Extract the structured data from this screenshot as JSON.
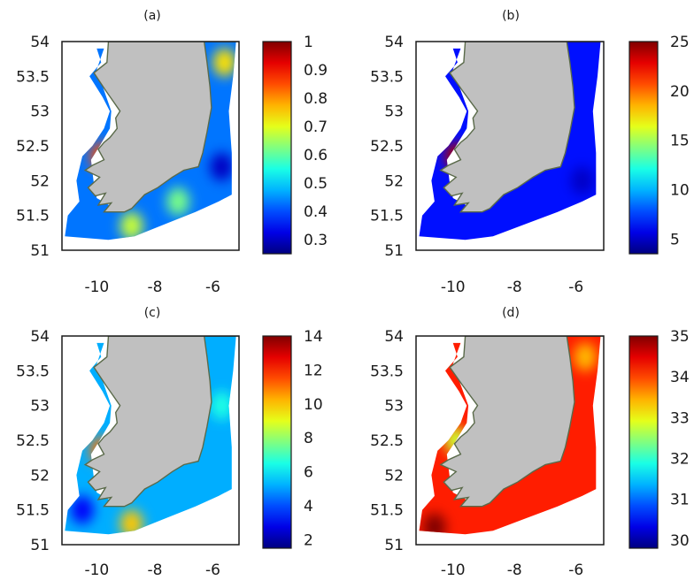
{
  "chart_data": [
    {
      "type": "heatmap",
      "title": "(a)",
      "xlim": [
        -11.2,
        -5.1
      ],
      "ylim": [
        51,
        54
      ],
      "x_ticks": [
        -10,
        -8,
        -6
      ],
      "y_ticks": [
        51,
        51.5,
        52,
        52.5,
        53,
        53.5,
        54
      ],
      "colorbar": {
        "range": [
          0.25,
          1
        ],
        "ticks": [
          0.3,
          0.4,
          0.5,
          0.6,
          0.7,
          0.8,
          0.9,
          1
        ],
        "tick_labels": [
          "0.3",
          "0.4",
          "0.5",
          "0.6",
          "0.7",
          "0.8",
          "0.9",
          "1"
        ]
      },
      "field": {
        "background": 0.43,
        "patches": [
          {
            "lon": -5.6,
            "lat": 53.7,
            "value": 0.74
          },
          {
            "lon": -9.85,
            "lat": 52.35,
            "value": 0.85
          },
          {
            "lon": -8.8,
            "lat": 51.35,
            "value": 0.68
          },
          {
            "lon": -7.2,
            "lat": 51.7,
            "value": 0.62
          },
          {
            "lon": -5.7,
            "lat": 52.2,
            "value": 0.3
          }
        ]
      },
      "grid": false
    },
    {
      "type": "heatmap",
      "title": "(b)",
      "xlim": [
        -11.2,
        -5.1
      ],
      "ylim": [
        51,
        54
      ],
      "x_ticks": [
        -10,
        -8,
        -6
      ],
      "y_ticks": [
        51,
        51.5,
        52,
        52.5,
        53,
        53.5,
        54
      ],
      "colorbar": {
        "range": [
          3.5,
          25
        ],
        "ticks": [
          5,
          10,
          15,
          20,
          25
        ],
        "tick_labels": [
          "5",
          "10",
          "15",
          "20",
          "25"
        ]
      },
      "field": {
        "background": 6.5,
        "patches": [
          {
            "lon": -9.9,
            "lat": 52.35,
            "value": 24
          },
          {
            "lon": -5.8,
            "lat": 52.0,
            "value": 5
          }
        ]
      },
      "grid": false
    },
    {
      "type": "heatmap",
      "title": "(c)",
      "xlim": [
        -11.2,
        -5.1
      ],
      "ylim": [
        51,
        54
      ],
      "x_ticks": [
        -10,
        -8,
        -6
      ],
      "y_ticks": [
        51,
        51.5,
        52,
        52.5,
        53,
        53.5,
        54
      ],
      "colorbar": {
        "range": [
          1.5,
          14
        ],
        "ticks": [
          2,
          4,
          6,
          8,
          10,
          12,
          14
        ],
        "tick_labels": [
          "2",
          "4",
          "6",
          "8",
          "10",
          "12",
          "14"
        ]
      },
      "field": {
        "background": 5.2,
        "patches": [
          {
            "lon": -9.85,
            "lat": 52.35,
            "value": 11
          },
          {
            "lon": -8.8,
            "lat": 51.3,
            "value": 10
          },
          {
            "lon": -10.5,
            "lat": 51.5,
            "value": 3
          },
          {
            "lon": -5.7,
            "lat": 53.0,
            "value": 6.5
          }
        ]
      },
      "grid": false
    },
    {
      "type": "heatmap",
      "title": "(d)",
      "xlim": [
        -11.2,
        -5.1
      ],
      "ylim": [
        51,
        54
      ],
      "x_ticks": [
        -10,
        -8,
        -6
      ],
      "y_ticks": [
        51,
        51.5,
        52,
        52.5,
        53,
        53.5,
        54
      ],
      "colorbar": {
        "range": [
          29.8,
          35
        ],
        "ticks": [
          30,
          31,
          32,
          33,
          34,
          35
        ],
        "tick_labels": [
          "30",
          "31",
          "32",
          "33",
          "34",
          "35"
        ]
      },
      "field": {
        "background": 34.2,
        "patches": [
          {
            "lon": -10.6,
            "lat": 51.25,
            "value": 35
          },
          {
            "lon": -5.7,
            "lat": 53.7,
            "value": 33.4
          },
          {
            "lon": -9.9,
            "lat": 52.5,
            "value": 32.8
          }
        ]
      },
      "grid": false
    }
  ],
  "colors": {
    "land": "#c0c0c0",
    "frame": "#1a1a1a",
    "coast": "#5a6a4a",
    "colormap": "jet"
  }
}
